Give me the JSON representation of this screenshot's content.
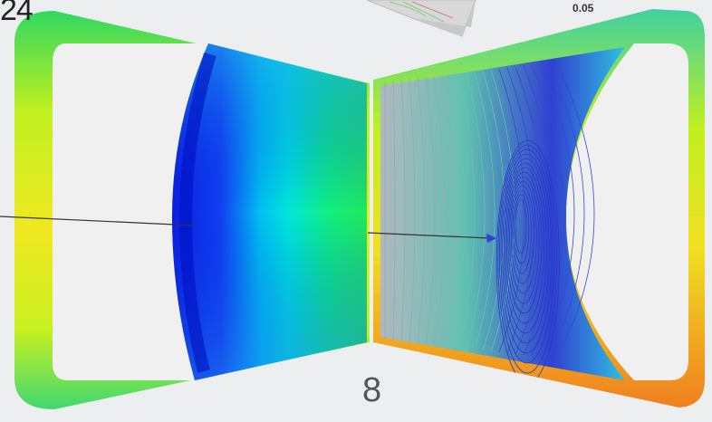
{
  "labels": {
    "corner": "24",
    "scale_value": "0.05",
    "page_number": "8"
  },
  "colors": {
    "background": "#eceef0",
    "frame_yellow": "#e8f020",
    "frame_green": "#30d860",
    "frame_orange": "#f08020",
    "field_blue": "#0a1ee0",
    "field_cyan": "#00e0f0",
    "field_green": "#10f060",
    "streamline_blue": "#3040d0",
    "pointer_line": "#333333"
  }
}
